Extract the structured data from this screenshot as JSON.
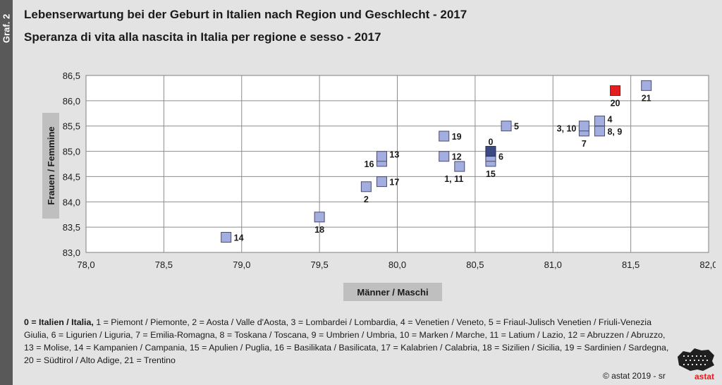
{
  "sidebar": {
    "label": "Graf. 2"
  },
  "header": {
    "title_de": "Lebenserwartung bei der Geburt in Italien nach Region und Geschlecht - 2017",
    "title_it": "Speranza di vita alla nascita in Italia per regione e sesso - 2017"
  },
  "chart_data": {
    "type": "scatter",
    "xlabel": "Männer / Maschi",
    "ylabel": "Frauen / Femmine",
    "xlim": [
      78.0,
      82.0
    ],
    "ylim": [
      83.0,
      86.5
    ],
    "x_ticks": [
      "78,0",
      "78,5",
      "79,0",
      "79,5",
      "80,0",
      "80,5",
      "81,0",
      "81,5",
      "82,0"
    ],
    "y_ticks": [
      "83,0",
      "83,5",
      "84,0",
      "84,5",
      "85,0",
      "85,5",
      "86,0",
      "86,5"
    ],
    "grid": true,
    "colors": {
      "default": "#a3aee0",
      "italy": "#3b4a82",
      "highlight": "#e41e20"
    },
    "points": [
      {
        "label": "14",
        "x": 78.9,
        "y": 83.3
      },
      {
        "label": "18",
        "x": 79.5,
        "y": 83.7
      },
      {
        "label": "2",
        "x": 79.8,
        "y": 84.3
      },
      {
        "label": "17",
        "x": 79.9,
        "y": 84.4
      },
      {
        "label": "16",
        "x": 79.9,
        "y": 84.8
      },
      {
        "label": "13",
        "x": 79.9,
        "y": 84.9
      },
      {
        "label": "12",
        "x": 80.3,
        "y": 84.9
      },
      {
        "label": "19",
        "x": 80.3,
        "y": 85.3
      },
      {
        "label": "1, 11",
        "x": 80.4,
        "y": 84.7
      },
      {
        "label": "15",
        "x": 80.6,
        "y": 84.8
      },
      {
        "label": "6",
        "x": 80.6,
        "y": 84.9
      },
      {
        "label": "0",
        "x": 80.6,
        "y": 85.0
      },
      {
        "label": "5",
        "x": 80.7,
        "y": 85.5
      },
      {
        "label": "7",
        "x": 81.2,
        "y": 85.4
      },
      {
        "label": "3, 10",
        "x": 81.2,
        "y": 85.5
      },
      {
        "label": "8, 9",
        "x": 81.3,
        "y": 85.4
      },
      {
        "label": "4",
        "x": 81.3,
        "y": 85.6
      },
      {
        "label": "20",
        "x": 81.4,
        "y": 86.2
      },
      {
        "label": "21",
        "x": 81.6,
        "y": 86.3
      }
    ]
  },
  "footnote": {
    "italy": "0 = Italien / Italia,",
    "text": " 1 = Piemont / Piemonte, 2 = Aosta / Valle d'Aosta, 3 = Lombardei / Lombardia, 4 = Venetien / Veneto, 5 = Friaul-Julisch Venetien / Friuli-Venezia Giulia, 6 = Ligurien / Liguria, 7 = Emilia-Romagna, 8 = Toskana / Toscana, 9 = Umbrien / Umbria, 10 = Marken / Marche, 11 = Latium / Lazio, 12 = Abruzzen / Abruzzo, 13 = Molise, 14 = Kampanien / Campania, 15 = Apulien / Puglia, 16 = Basilikata / Basilicata, 17 = Kalabrien / Calabria, 18 = Sizilien / Sicilia, 19 = Sardinien / Sardegna, 20 = Südtirol / Alto Adige, 21 = Trentino"
  },
  "credit": "© astat 2019 - sr",
  "logo": {
    "text": "astat",
    "icon": "south-tyrol-map-icon"
  }
}
